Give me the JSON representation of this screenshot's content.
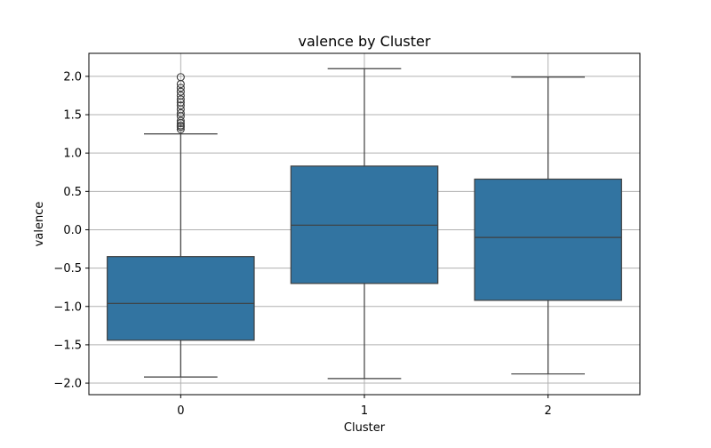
{
  "chart_data": {
    "type": "box",
    "title": "valence by Cluster",
    "xlabel": "Cluster",
    "ylabel": "valence",
    "categories": [
      "0",
      "1",
      "2"
    ],
    "ylim": [
      -2.15,
      2.3
    ],
    "yticks": [
      -2.0,
      -1.5,
      -1.0,
      -0.5,
      0.0,
      0.5,
      1.0,
      1.5,
      2.0
    ],
    "ytick_labels": [
      "−2.0",
      "−1.5",
      "−1.0",
      "−0.5",
      "0.0",
      "0.5",
      "1.0",
      "1.5",
      "2.0"
    ],
    "grid": true,
    "box_color": "#3274a1",
    "line_color": "#3f3f3f",
    "boxes": [
      {
        "category": "0",
        "whisker_low": -1.92,
        "q1": -1.44,
        "median": -0.96,
        "q3": -0.35,
        "whisker_high": 1.25,
        "outliers": [
          1.31,
          1.34,
          1.36,
          1.39,
          1.42,
          1.48,
          1.52,
          1.57,
          1.62,
          1.66,
          1.7,
          1.75,
          1.8,
          1.85,
          1.9,
          1.99
        ]
      },
      {
        "category": "1",
        "whisker_low": -1.94,
        "q1": -0.7,
        "median": 0.06,
        "q3": 0.83,
        "whisker_high": 2.1,
        "outliers": []
      },
      {
        "category": "2",
        "whisker_low": -1.88,
        "q1": -0.92,
        "median": -0.1,
        "q3": 0.66,
        "whisker_high": 1.99,
        "outliers": []
      }
    ]
  }
}
